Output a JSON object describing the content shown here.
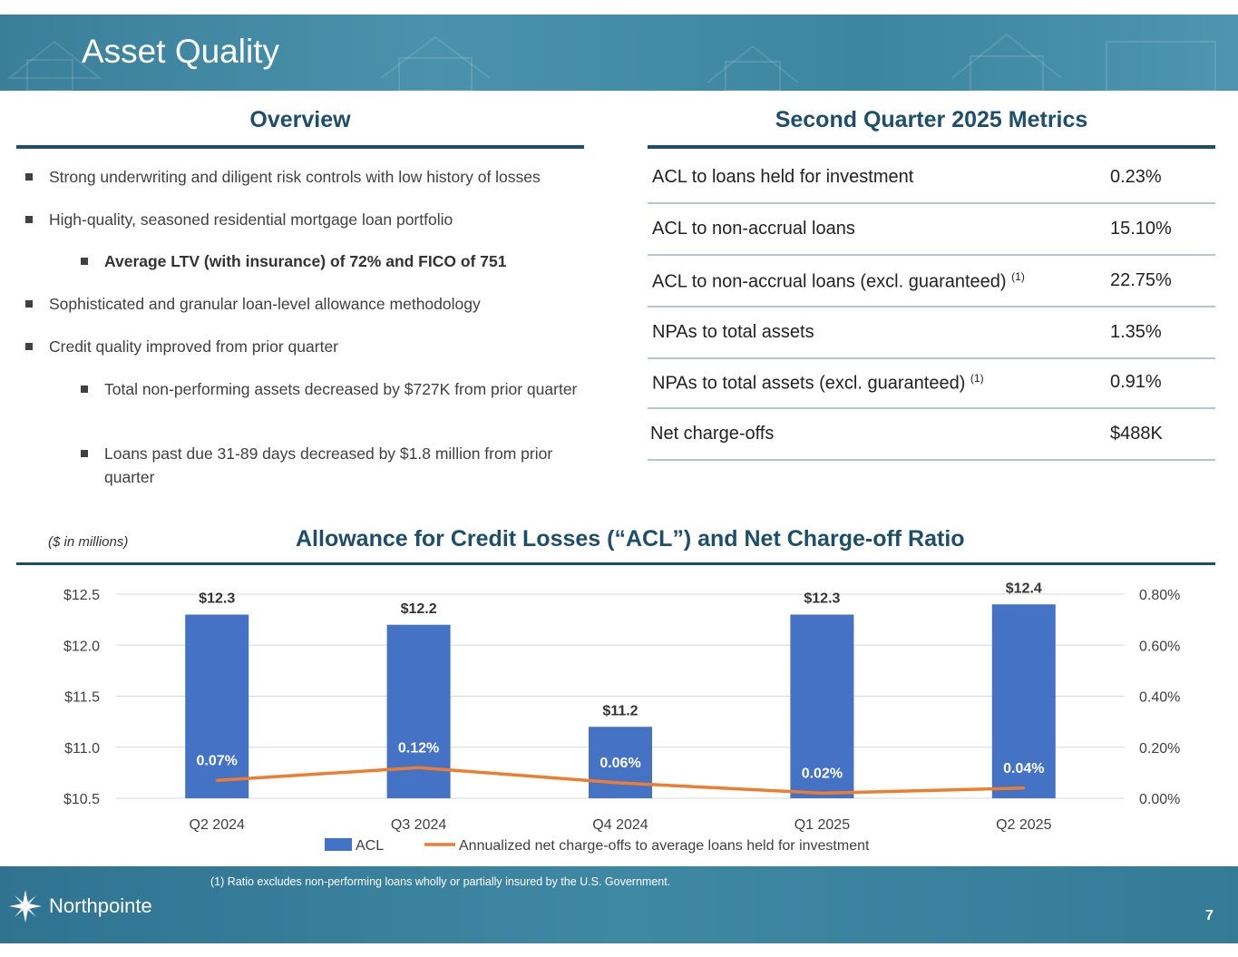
{
  "header": {
    "title": "Asset Quality"
  },
  "overview": {
    "heading": "Overview",
    "bullets": [
      {
        "text": "Strong underwriting and diligent risk controls with low history of losses",
        "level": 1,
        "bold": false
      },
      {
        "text": "High-quality, seasoned residential mortgage loan portfolio",
        "level": 1,
        "bold": false
      },
      {
        "text": "Average LTV (with insurance) of 72% and FICO of 751",
        "level": 2,
        "bold": true
      },
      {
        "text": "Sophisticated and granular loan-level allowance methodology",
        "level": 1,
        "bold": false
      },
      {
        "text": "Credit quality improved from prior quarter",
        "level": 1,
        "bold": false
      },
      {
        "text": "Total non-performing assets decreased by $727K from prior quarter",
        "level": 2,
        "bold": false
      },
      {
        "text": "Loans past due 31-89 days decreased by $1.8 million from prior quarter",
        "level": 2,
        "bold": false
      }
    ]
  },
  "metrics": {
    "heading": "Second Quarter 2025 Metrics",
    "rows": [
      {
        "label": "ACL to loans held for investment",
        "note": "",
        "value": "0.23%"
      },
      {
        "label": "ACL to non-accrual loans",
        "note": "",
        "value": "15.10%"
      },
      {
        "label": "ACL to non-accrual loans (excl. guaranteed)",
        "note": "(1)",
        "value": "22.75%"
      },
      {
        "label": "NPAs to total assets",
        "note": "",
        "value": "1.35%"
      },
      {
        "label": "NPAs to total assets (excl. guaranteed)",
        "note": "(1)",
        "value": "0.91%"
      },
      {
        "label": "Net charge-offs",
        "note": "",
        "value": "$488K"
      }
    ]
  },
  "chart_section": {
    "units_note": "($ in millions)",
    "title": "Allowance for Credit Losses (“ACL”) and Net Charge-off Ratio"
  },
  "chart_data": {
    "type": "bar",
    "categories": [
      "Q2 2024",
      "Q3 2024",
      "Q4 2024",
      "Q1 2025",
      "Q2 2025"
    ],
    "series": [
      {
        "name": "ACL",
        "type": "bar",
        "axis": "left",
        "values": [
          12.3,
          12.2,
          11.2,
          12.3,
          12.4
        ],
        "labels": [
          "$12.3",
          "$12.2",
          "$11.2",
          "$12.3",
          "$12.4"
        ],
        "color": "#4472c4"
      },
      {
        "name": "Annualized net charge-offs to average loans held for investment",
        "type": "line",
        "axis": "right",
        "values": [
          0.07,
          0.12,
          0.06,
          0.02,
          0.04
        ],
        "labels": [
          "0.07%",
          "0.12%",
          "0.06%",
          "0.02%",
          "0.04%"
        ],
        "color": "#ed7d31"
      }
    ],
    "y_left": {
      "min": 10.5,
      "max": 12.5,
      "ticks": [
        "$10.5",
        "$11.0",
        "$11.5",
        "$12.0",
        "$12.5"
      ]
    },
    "y_right": {
      "min": 0,
      "max": 0.8,
      "ticks": [
        "0.00%",
        "0.20%",
        "0.40%",
        "0.60%",
        "0.80%"
      ]
    },
    "grid": true,
    "legend": "bottom"
  },
  "footer": {
    "footnote": "(1)    Ratio excludes non-performing loans wholly or partially insured by the U.S. Government.",
    "logo_text": "Northpointe",
    "page_number": "7"
  }
}
